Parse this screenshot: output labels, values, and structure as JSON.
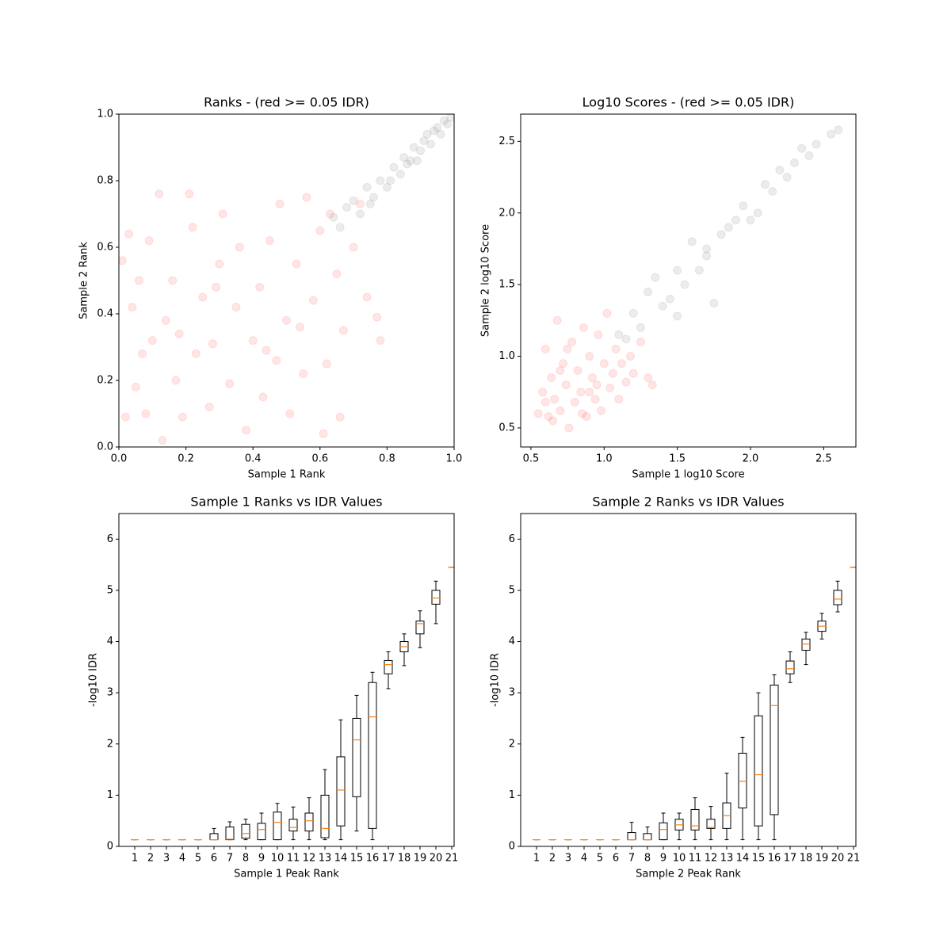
{
  "chart_data": [
    {
      "type": "scatter",
      "title": "Ranks - (red >= 0.05 IDR)",
      "xlabel": "Sample 1 Rank",
      "ylabel": "Sample 2 Rank",
      "xlim": [
        0,
        1
      ],
      "ylim": [
        0,
        1
      ],
      "xticks": [
        {
          "value": 0,
          "label": "0.0"
        },
        0.2,
        0.4,
        0.6,
        0.8,
        {
          "value": 1,
          "label": "1.0"
        }
      ],
      "yticks": [
        {
          "value": 0,
          "label": "0.0"
        },
        0.2,
        0.4,
        0.6,
        0.8,
        {
          "value": 1,
          "label": "1.0"
        }
      ],
      "series": [
        {
          "color": "#ff0000",
          "alpha": 0.1,
          "x": [
            0.01,
            0.03,
            0.04,
            0.05,
            0.06,
            0.08,
            0.09,
            0.1,
            0.12,
            0.13,
            0.14,
            0.16,
            0.17,
            0.19,
            0.21,
            0.22,
            0.23,
            0.25,
            0.27,
            0.28,
            0.3,
            0.31,
            0.33,
            0.35,
            0.36,
            0.38,
            0.4,
            0.42,
            0.43,
            0.45,
            0.47,
            0.48,
            0.5,
            0.51,
            0.53,
            0.55,
            0.56,
            0.58,
            0.6,
            0.61,
            0.62,
            0.63,
            0.65,
            0.66,
            0.67,
            0.7,
            0.72,
            0.74,
            0.77,
            0.78,
            0.07,
            0.02,
            0.18,
            0.29,
            0.44,
            0.54
          ],
          "y": [
            0.56,
            0.64,
            0.42,
            0.18,
            0.5,
            0.1,
            0.62,
            0.32,
            0.76,
            0.02,
            0.38,
            0.5,
            0.2,
            0.09,
            0.76,
            0.66,
            0.28,
            0.45,
            0.12,
            0.31,
            0.55,
            0.7,
            0.19,
            0.42,
            0.6,
            0.05,
            0.32,
            0.48,
            0.15,
            0.62,
            0.26,
            0.73,
            0.38,
            0.1,
            0.55,
            0.22,
            0.75,
            0.44,
            0.65,
            0.04,
            0.25,
            0.7,
            0.52,
            0.09,
            0.35,
            0.6,
            0.73,
            0.45,
            0.39,
            0.32,
            0.28,
            0.09,
            0.34,
            0.48,
            0.29,
            0.36
          ]
        },
        {
          "color": "#808080",
          "alpha": 0.15,
          "x": [
            0.64,
            0.66,
            0.68,
            0.7,
            0.72,
            0.74,
            0.76,
            0.78,
            0.8,
            0.82,
            0.84,
            0.85,
            0.87,
            0.88,
            0.9,
            0.91,
            0.92,
            0.93,
            0.94,
            0.95,
            0.96,
            0.97,
            0.98,
            0.99,
            0.75,
            0.81,
            0.86,
            0.89
          ],
          "y": [
            0.69,
            0.66,
            0.72,
            0.74,
            0.7,
            0.78,
            0.75,
            0.8,
            0.78,
            0.84,
            0.82,
            0.87,
            0.86,
            0.9,
            0.89,
            0.92,
            0.94,
            0.91,
            0.95,
            0.96,
            0.94,
            0.98,
            0.97,
            0.99,
            0.73,
            0.8,
            0.85,
            0.86
          ]
        }
      ]
    },
    {
      "type": "scatter",
      "title": "Log10 Scores - (red >= 0.05 IDR)",
      "xlabel": "Sample 1 log10 Score",
      "ylabel": "Sample 2 log10 Score",
      "xlim": [
        0.43,
        2.72
      ],
      "ylim": [
        0.367,
        2.69
      ],
      "xticks": [
        0.5,
        {
          "value": 1,
          "label": "1.0"
        },
        1.5,
        {
          "value": 2,
          "label": "2.0"
        },
        2.5
      ],
      "yticks": [
        0.5,
        {
          "value": 1,
          "label": "1.0"
        },
        1.5,
        {
          "value": 2,
          "label": "2.0"
        },
        2.5
      ],
      "series": [
        {
          "color": "#ff0000",
          "alpha": 0.1,
          "x": [
            0.55,
            0.58,
            0.6,
            0.62,
            0.64,
            0.66,
            0.68,
            0.7,
            0.72,
            0.74,
            0.76,
            0.78,
            0.8,
            0.82,
            0.84,
            0.86,
            0.88,
            0.9,
            0.92,
            0.94,
            0.96,
            0.98,
            1.0,
            1.02,
            1.04,
            1.06,
            1.08,
            1.1,
            1.12,
            1.15,
            1.18,
            1.2,
            1.25,
            1.3,
            1.33,
            0.65,
            0.75,
            0.85,
            0.95,
            0.7,
            0.6,
            0.9
          ],
          "y": [
            0.6,
            0.75,
            1.05,
            0.58,
            0.85,
            0.7,
            1.25,
            0.62,
            0.95,
            0.8,
            0.5,
            1.1,
            0.68,
            0.9,
            0.75,
            1.2,
            0.58,
            1.0,
            0.85,
            0.7,
            1.15,
            0.62,
            0.95,
            1.3,
            0.78,
            0.88,
            1.05,
            0.7,
            0.95,
            0.82,
            1.0,
            0.88,
            1.1,
            0.85,
            0.8,
            0.55,
            1.05,
            0.6,
            0.8,
            0.9,
            0.68,
            0.75
          ]
        },
        {
          "color": "#808080",
          "alpha": 0.15,
          "x": [
            1.1,
            1.15,
            1.2,
            1.25,
            1.3,
            1.35,
            1.4,
            1.45,
            1.5,
            1.55,
            1.6,
            1.65,
            1.7,
            1.75,
            1.8,
            1.85,
            1.9,
            1.95,
            2.0,
            2.05,
            2.1,
            2.15,
            2.2,
            2.25,
            2.3,
            2.35,
            2.4,
            2.45,
            2.55,
            2.6,
            1.5,
            1.7
          ],
          "y": [
            1.15,
            1.12,
            1.3,
            1.2,
            1.45,
            1.55,
            1.35,
            1.4,
            1.6,
            1.5,
            1.8,
            1.6,
            1.75,
            1.37,
            1.85,
            1.9,
            1.95,
            2.05,
            1.95,
            2.0,
            2.2,
            2.15,
            2.3,
            2.25,
            2.35,
            2.45,
            2.4,
            2.48,
            2.55,
            2.58,
            1.28,
            1.7
          ]
        }
      ]
    },
    {
      "type": "box",
      "title": "Sample 1 Ranks vs IDR Values",
      "xlabel": "Sample 1 Peak Rank",
      "ylabel": "-log10 IDR",
      "xlim": [
        0,
        21.15
      ],
      "ylim": [
        0,
        6.5
      ],
      "xticks": [
        1,
        2,
        3,
        4,
        5,
        6,
        7,
        8,
        9,
        10,
        11,
        12,
        13,
        14,
        15,
        16,
        17,
        18,
        19,
        20,
        21
      ],
      "yticks": [
        0,
        1,
        2,
        3,
        4,
        5,
        6
      ],
      "x": [
        1,
        2,
        3,
        4,
        5,
        6,
        7,
        8,
        9,
        10,
        11,
        12,
        13,
        14,
        15,
        16,
        17,
        18,
        19,
        20,
        21
      ],
      "box_color": "#000000",
      "median_color": "#ff7f0e",
      "whislo": [
        0.13,
        0.13,
        0.13,
        0.13,
        0.13,
        0.13,
        0.13,
        0.13,
        0.13,
        0.13,
        0.13,
        0.13,
        0.13,
        0.13,
        0.3,
        0.13,
        3.08,
        3.53,
        3.88,
        4.35,
        5.45
      ],
      "q1": [
        0.13,
        0.13,
        0.13,
        0.13,
        0.13,
        0.13,
        0.13,
        0.16,
        0.13,
        0.13,
        0.3,
        0.3,
        0.17,
        0.4,
        0.97,
        0.35,
        3.37,
        3.8,
        4.15,
        4.73,
        5.45
      ],
      "med": [
        0.13,
        0.13,
        0.13,
        0.13,
        0.13,
        0.13,
        0.14,
        0.25,
        0.33,
        0.47,
        0.37,
        0.5,
        0.35,
        1.1,
        2.08,
        2.53,
        3.55,
        3.9,
        4.35,
        4.85,
        5.45
      ],
      "q3": [
        0.13,
        0.13,
        0.13,
        0.13,
        0.13,
        0.25,
        0.38,
        0.43,
        0.45,
        0.67,
        0.53,
        0.65,
        1.0,
        1.75,
        2.5,
        3.2,
        3.63,
        4.0,
        4.4,
        5.0,
        5.45
      ],
      "whishi": [
        0.13,
        0.13,
        0.13,
        0.13,
        0.13,
        0.35,
        0.48,
        0.53,
        0.65,
        0.84,
        0.77,
        0.95,
        1.5,
        2.47,
        2.95,
        3.4,
        3.8,
        4.15,
        4.6,
        5.18,
        5.45
      ]
    },
    {
      "type": "box",
      "title": "Sample 2 Ranks vs IDR Values",
      "xlabel": "Sample 2 Peak Rank",
      "ylabel": "-log10 IDR",
      "xlim": [
        0,
        21.15
      ],
      "ylim": [
        0,
        6.5
      ],
      "xticks": [
        1,
        2,
        3,
        4,
        5,
        6,
        7,
        8,
        9,
        10,
        11,
        12,
        13,
        14,
        15,
        16,
        17,
        18,
        19,
        20,
        21
      ],
      "yticks": [
        0,
        1,
        2,
        3,
        4,
        5,
        6
      ],
      "x": [
        1,
        2,
        3,
        4,
        5,
        6,
        7,
        8,
        9,
        10,
        11,
        12,
        13,
        14,
        15,
        16,
        17,
        18,
        19,
        20,
        21
      ],
      "box_color": "#000000",
      "median_color": "#ff7f0e",
      "whislo": [
        0.13,
        0.13,
        0.13,
        0.13,
        0.13,
        0.13,
        0.13,
        0.13,
        0.13,
        0.13,
        0.13,
        0.13,
        0.13,
        0.13,
        0.13,
        0.13,
        3.2,
        3.55,
        4.05,
        4.58,
        5.45
      ],
      "q1": [
        0.13,
        0.13,
        0.13,
        0.13,
        0.13,
        0.13,
        0.13,
        0.13,
        0.13,
        0.32,
        0.32,
        0.35,
        0.35,
        0.75,
        0.4,
        0.62,
        3.37,
        3.83,
        4.2,
        4.72,
        5.45
      ],
      "med": [
        0.13,
        0.13,
        0.13,
        0.13,
        0.13,
        0.13,
        0.13,
        0.13,
        0.33,
        0.42,
        0.4,
        0.37,
        0.6,
        1.27,
        1.4,
        2.75,
        3.47,
        3.95,
        4.3,
        4.83,
        5.45
      ],
      "q3": [
        0.13,
        0.13,
        0.13,
        0.13,
        0.13,
        0.13,
        0.27,
        0.25,
        0.46,
        0.53,
        0.72,
        0.53,
        0.85,
        1.82,
        2.55,
        3.15,
        3.62,
        4.05,
        4.4,
        5.0,
        5.45
      ],
      "whishi": [
        0.13,
        0.13,
        0.13,
        0.13,
        0.13,
        0.13,
        0.47,
        0.38,
        0.65,
        0.65,
        0.95,
        0.78,
        1.43,
        2.13,
        3.0,
        3.35,
        3.8,
        4.18,
        4.55,
        5.18,
        5.45
      ]
    }
  ]
}
